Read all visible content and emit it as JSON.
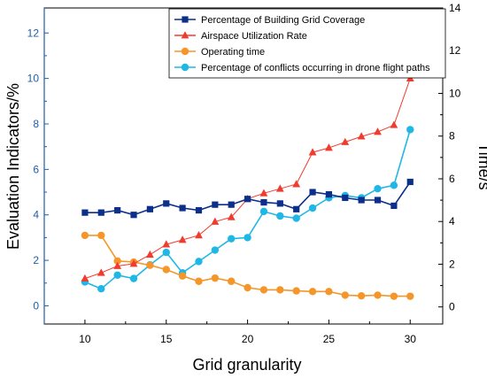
{
  "chart_data": {
    "type": "line",
    "xlabel": "Grid granularity",
    "ylabel_left": "Evaluation Indicators/%",
    "ylabel_right": "Time/s",
    "x_ticks": [
      "10",
      "15",
      "20",
      "25",
      "30"
    ],
    "y_ticks_left": [
      "0",
      "2",
      "4",
      "6",
      "8",
      "10",
      "12"
    ],
    "y_ticks_right": [
      "0",
      "2",
      "4",
      "6",
      "8",
      "10",
      "12",
      "14"
    ],
    "xlim": [
      7.5,
      32
    ],
    "ylim_left": [
      -0.8,
      13.1
    ],
    "ylim_right": [
      -0.8,
      14
    ],
    "x": [
      10,
      11,
      12,
      13,
      14,
      15,
      16,
      17,
      18,
      19,
      20,
      21,
      22,
      23,
      24,
      25,
      26,
      27,
      28,
      29,
      30
    ],
    "legend_position": "top-right",
    "grid": false,
    "colors": {
      "left_axis": "#1f5fa8",
      "frame": "#000000"
    },
    "series": [
      {
        "name": "Percentage of Building Grid Coverage",
        "axis": "left",
        "marker": "square",
        "color": "#0b2f8a",
        "values": [
          4.1,
          4.1,
          4.2,
          4.0,
          4.25,
          4.5,
          4.3,
          4.2,
          4.45,
          4.45,
          4.7,
          4.55,
          4.5,
          4.25,
          5.0,
          4.9,
          4.75,
          4.65,
          4.65,
          4.4,
          5.45
        ]
      },
      {
        "name": "Airspace Utilization Rate",
        "axis": "left",
        "marker": "triangle",
        "color": "#f03c2e",
        "values": [
          1.2,
          1.45,
          1.75,
          1.85,
          2.25,
          2.7,
          2.9,
          3.1,
          3.7,
          3.9,
          4.7,
          4.95,
          5.15,
          5.35,
          6.75,
          6.95,
          7.2,
          7.45,
          7.65,
          7.95,
          10.0
        ]
      },
      {
        "name": "Operating time",
        "axis": "right",
        "marker": "circle",
        "color": "#f5962a",
        "values": [
          3.35,
          3.35,
          2.15,
          2.1,
          1.95,
          1.75,
          1.45,
          1.2,
          1.35,
          1.2,
          0.9,
          0.8,
          0.8,
          0.75,
          0.72,
          0.72,
          0.55,
          0.52,
          0.55,
          0.5,
          0.5
        ]
      },
      {
        "name": "Percentage of conflicts occurring in drone flight paths",
        "axis": "left",
        "marker": "circle",
        "color": "#1fb8e6",
        "values": [
          1.05,
          0.75,
          1.35,
          1.2,
          1.8,
          2.35,
          1.45,
          1.95,
          2.45,
          2.95,
          3.0,
          4.15,
          3.95,
          3.85,
          4.3,
          4.75,
          4.85,
          4.75,
          5.15,
          5.3,
          7.75
        ]
      }
    ]
  }
}
